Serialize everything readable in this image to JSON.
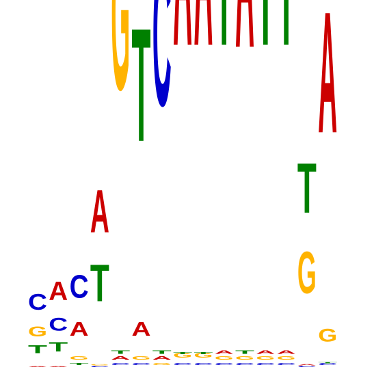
{
  "chart_data": {
    "type": "sequence-logo",
    "title": "",
    "xlabel": "",
    "ylabel": "",
    "alphabet": [
      "A",
      "C",
      "G",
      "T"
    ],
    "ylim": [
      0,
      2
    ],
    "colors": {
      "A": "#cc0000",
      "C": "#0000cc",
      "G": "#ffb300",
      "T": "#008000"
    },
    "positions": [
      {
        "position": 1,
        "letters": [
          {
            "base": "A",
            "height": 0.01
          },
          {
            "base": "T",
            "height": 0.07
          },
          {
            "base": "G",
            "height": 0.09
          },
          {
            "base": "C",
            "height": 0.14
          }
        ]
      },
      {
        "position": 2,
        "letters": [
          {
            "base": "A",
            "height": 0.01
          },
          {
            "base": "T",
            "height": 0.08
          },
          {
            "base": "C",
            "height": 0.11
          },
          {
            "base": "A",
            "height": 0.16
          }
        ]
      },
      {
        "position": 3,
        "letters": [
          {
            "base": "T",
            "height": 0.02
          },
          {
            "base": "G",
            "height": 0.03
          },
          {
            "base": "A",
            "height": 0.12
          },
          {
            "base": "C",
            "height": 0.2
          }
        ]
      },
      {
        "position": 4,
        "letters": [
          {
            "base": "C",
            "height": 0.01
          },
          {
            "base": "G",
            "height": 0.01
          },
          {
            "base": "T",
            "height": 0.32
          },
          {
            "base": "A",
            "height": 0.37
          }
        ]
      },
      {
        "position": 5,
        "letters": [
          {
            "base": "C",
            "height": 0.02
          },
          {
            "base": "A",
            "height": 0.03
          },
          {
            "base": "T",
            "height": 0.03
          },
          {
            "base": "G",
            "height": 1.32
          }
        ]
      },
      {
        "position": 6,
        "letters": [
          {
            "base": "C",
            "height": 0.02
          },
          {
            "base": "G",
            "height": 0.03
          },
          {
            "base": "A",
            "height": 0.12
          },
          {
            "base": "T",
            "height": 0.98
          }
        ]
      },
      {
        "position": 7,
        "letters": [
          {
            "base": "G",
            "height": 0.02
          },
          {
            "base": "A",
            "height": 0.03
          },
          {
            "base": "T",
            "height": 0.03
          },
          {
            "base": "C",
            "height": 1.24
          }
        ]
      },
      {
        "position": 8,
        "letters": [
          {
            "base": "C",
            "height": 0.02
          },
          {
            "base": "G",
            "height": 0.04
          },
          {
            "base": "T",
            "height": 0.02
          },
          {
            "base": "A",
            "height": 1.54
          }
        ]
      },
      {
        "position": 9,
        "letters": [
          {
            "base": "C",
            "height": 0.02
          },
          {
            "base": "G",
            "height": 0.04
          },
          {
            "base": "T",
            "height": 0.02
          },
          {
            "base": "A",
            "height": 1.54
          }
        ]
      },
      {
        "position": 10,
        "letters": [
          {
            "base": "C",
            "height": 0.02
          },
          {
            "base": "G",
            "height": 0.03
          },
          {
            "base": "A",
            "height": 0.03
          },
          {
            "base": "T",
            "height": 1.54
          }
        ]
      },
      {
        "position": 11,
        "letters": [
          {
            "base": "C",
            "height": 0.02
          },
          {
            "base": "G",
            "height": 0.03
          },
          {
            "base": "T",
            "height": 0.03
          },
          {
            "base": "A",
            "height": 1.53
          }
        ]
      },
      {
        "position": 12,
        "letters": [
          {
            "base": "C",
            "height": 0.02
          },
          {
            "base": "G",
            "height": 0.03
          },
          {
            "base": "A",
            "height": 0.03
          },
          {
            "base": "T",
            "height": 1.54
          }
        ]
      },
      {
        "position": 13,
        "letters": [
          {
            "base": "C",
            "height": 0.02
          },
          {
            "base": "G",
            "height": 0.03
          },
          {
            "base": "A",
            "height": 0.03
          },
          {
            "base": "T",
            "height": 1.54
          }
        ]
      },
      {
        "position": 14,
        "letters": [
          {
            "base": "C",
            "height": 0.01
          },
          {
            "base": "A",
            "height": 0.01
          },
          {
            "base": "G",
            "height": 0.36
          },
          {
            "base": "T",
            "height": 0.43
          }
        ]
      },
      {
        "position": 15,
        "letters": [
          {
            "base": "C",
            "height": 0.02
          },
          {
            "base": "T",
            "height": 0.01
          },
          {
            "base": "G",
            "height": 0.11
          },
          {
            "base": "A",
            "height": 1.05
          }
        ]
      }
    ]
  }
}
